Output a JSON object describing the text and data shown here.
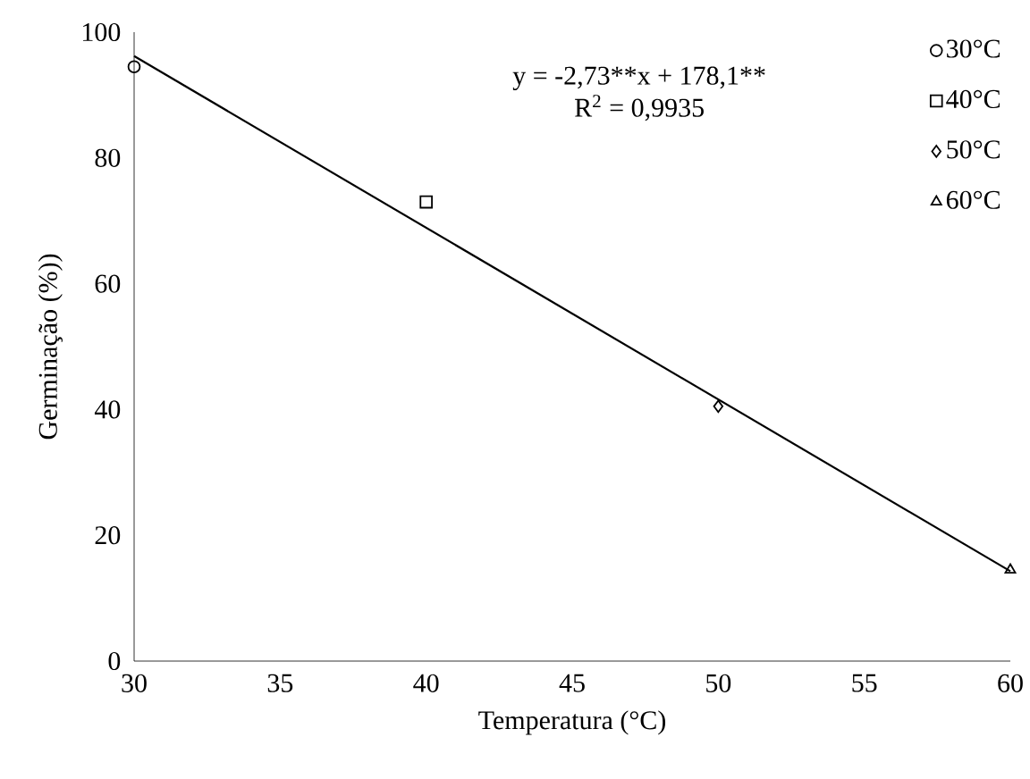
{
  "chart_data": {
    "type": "scatter",
    "xlabel": "Temperatura (°C)",
    "ylabel": "Germinação (%))",
    "annotations": [
      "y = -2,73**",
      "x + 178,1**",
      "R$^{2}$ = 0,9935"
    ],
    "series": [
      {
        "name": "30°C",
        "color": "#000000",
        "marker": "circle",
        "x": [
          30
        ],
        "values": [
          94.5
        ]
      },
      {
        "name": "40°C",
        "color": "#000000",
        "marker": "square",
        "x": [
          40
        ],
        "values": [
          73
        ]
      },
      {
        "name": "50°C",
        "color": "#000000",
        "marker": "diamond",
        "x": [
          50
        ],
        "values": [
          40.5
        ]
      },
      {
        "name": "60°C",
        "color": "#000000",
        "marker": "triangle",
        "x": [
          60
        ],
        "values": [
          14.5
        ]
      },
      {
        "type": "line",
        "color": "#000000",
        "marker": "none",
        "line_style": "solid",
        "x": [
          30,
          60
        ],
        "values": [
          96.2,
          14.3
        ]
      }
    ],
    "xlim": [
      30,
      60
    ],
    "xticks": [
      30,
      35,
      40,
      45,
      50,
      55,
      60
    ],
    "ylim": [
      0,
      100
    ],
    "yticks": [
      0,
      20,
      40,
      60,
      80,
      100
    ],
    "grid": false,
    "legend": "top right"
  }
}
